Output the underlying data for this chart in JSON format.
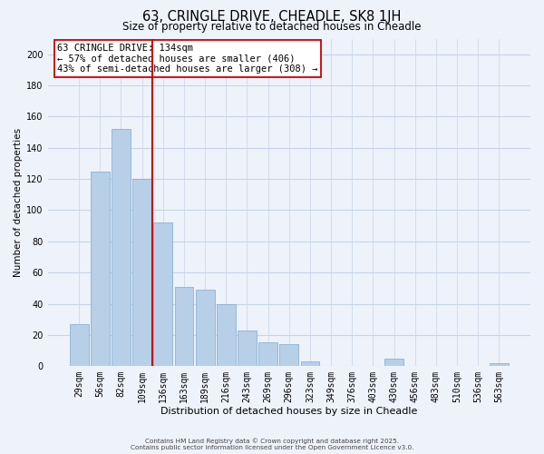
{
  "title": "63, CRINGLE DRIVE, CHEADLE, SK8 1JH",
  "subtitle": "Size of property relative to detached houses in Cheadle",
  "xlabel": "Distribution of detached houses by size in Cheadle",
  "ylabel": "Number of detached properties",
  "categories": [
    "29sqm",
    "56sqm",
    "82sqm",
    "109sqm",
    "136sqm",
    "163sqm",
    "189sqm",
    "216sqm",
    "243sqm",
    "269sqm",
    "296sqm",
    "323sqm",
    "349sqm",
    "376sqm",
    "403sqm",
    "430sqm",
    "456sqm",
    "483sqm",
    "510sqm",
    "536sqm",
    "563sqm"
  ],
  "values": [
    27,
    125,
    152,
    120,
    92,
    51,
    49,
    40,
    23,
    15,
    14,
    3,
    0,
    0,
    0,
    5,
    0,
    0,
    0,
    0,
    2
  ],
  "bar_color": "#b8cfe8",
  "bar_edgecolor": "#7aaacf",
  "vline_color": "#cc0000",
  "annotation_line1": "63 CRINGLE DRIVE: 134sqm",
  "annotation_line2": "← 57% of detached houses are smaller (406)",
  "annotation_line3": "43% of semi-detached houses are larger (308) →",
  "ylim": [
    0,
    210
  ],
  "yticks": [
    0,
    20,
    40,
    60,
    80,
    100,
    120,
    140,
    160,
    180,
    200
  ],
  "footer_line1": "Contains HM Land Registry data © Crown copyright and database right 2025.",
  "footer_line2": "Contains public sector information licensed under the Open Government Licence v3.0.",
  "background_color": "#eef2fa",
  "grid_color": "#c5d5ea"
}
